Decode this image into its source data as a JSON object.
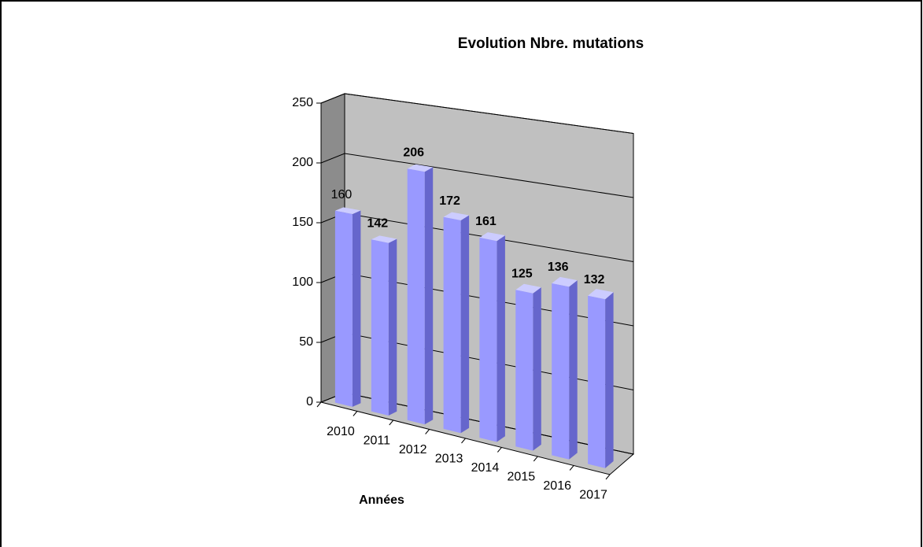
{
  "chart_data": {
    "type": "bar3d",
    "title": "Evolution Nbre. mutations",
    "x_label": "Années",
    "categories": [
      "2010",
      "2011",
      "2012",
      "2013",
      "2014",
      "2015",
      "2016",
      "2017"
    ],
    "values": [
      160,
      142,
      206,
      172,
      161,
      125,
      136,
      132
    ],
    "color": "#9999ff",
    "ylim": [
      0,
      250
    ],
    "yticks": [
      0,
      50,
      100,
      150,
      200,
      250
    ],
    "grid": true
  }
}
